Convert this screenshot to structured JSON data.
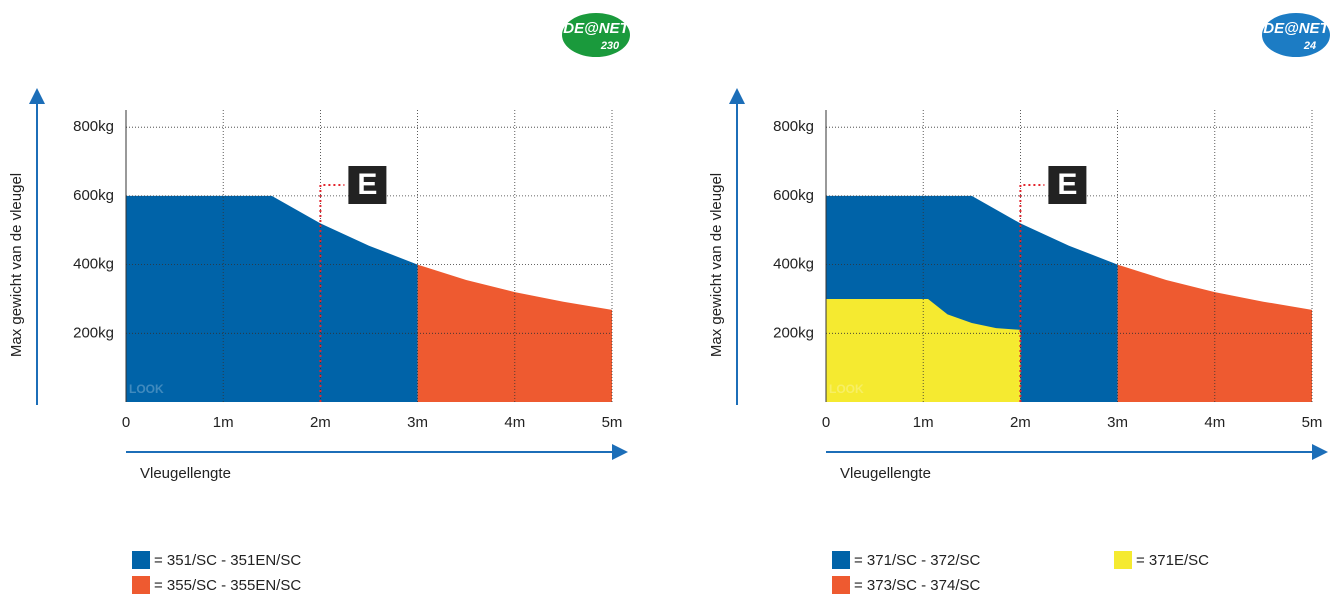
{
  "chart_data": [
    {
      "type": "area",
      "logo": {
        "brand": "DE@NET",
        "model": "230",
        "color": "#1a9a3c"
      },
      "y_label": "Max gewicht van de vleugel",
      "x_label": "Vleugellengte",
      "watermark": "LOOK",
      "annotation": {
        "label": "E",
        "x": 2
      },
      "xlim": [
        0,
        5
      ],
      "xticks": [
        0,
        {
          "value": 1,
          "label": "1m"
        },
        {
          "value": 2,
          "label": "2m"
        },
        {
          "value": 3,
          "label": "3m"
        },
        {
          "value": 4,
          "label": "4m"
        },
        {
          "value": 5,
          "label": "5m"
        }
      ],
      "ylim": [
        0,
        850
      ],
      "yticks": [
        {
          "value": 200,
          "label": "200kg"
        },
        {
          "value": 400,
          "label": "400kg"
        },
        {
          "value": 600,
          "label": "600kg"
        },
        {
          "value": 800,
          "label": "800kg"
        }
      ],
      "grid": true,
      "series": [
        {
          "name": "= 351/SC - 351EN/SC",
          "color": "#0063a8",
          "x": [
            0,
            1.5,
            2,
            2.5,
            3
          ],
          "values": [
            600,
            600,
            520,
            455,
            400
          ]
        },
        {
          "name": "= 355/SC - 355EN/SC",
          "color": "#ee5a30",
          "x": [
            3,
            3.5,
            4,
            4.5,
            5
          ],
          "values": [
            400,
            355,
            320,
            292,
            268
          ]
        }
      ]
    },
    {
      "type": "area",
      "logo": {
        "brand": "DE@NET",
        "model": "24",
        "color": "#1c7cc4"
      },
      "y_label": "Max gewicht van de vleugel",
      "x_label": "Vleugellengte",
      "watermark": "LOOK",
      "annotation": {
        "label": "E",
        "x": 2
      },
      "xlim": [
        0,
        5
      ],
      "xticks": [
        0,
        {
          "value": 1,
          "label": "1m"
        },
        {
          "value": 2,
          "label": "2m"
        },
        {
          "value": 3,
          "label": "3m"
        },
        {
          "value": 4,
          "label": "4m"
        },
        {
          "value": 5,
          "label": "5m"
        }
      ],
      "ylim": [
        0,
        850
      ],
      "yticks": [
        {
          "value": 200,
          "label": "200kg"
        },
        {
          "value": 400,
          "label": "400kg"
        },
        {
          "value": 600,
          "label": "600kg"
        },
        {
          "value": 800,
          "label": "800kg"
        }
      ],
      "grid": true,
      "series": [
        {
          "name": "= 371/SC - 372/SC",
          "color": "#0063a8",
          "x": [
            0,
            1.5,
            2,
            2.5,
            3
          ],
          "values": [
            600,
            600,
            520,
            455,
            400
          ]
        },
        {
          "name": "= 373/SC - 374/SC",
          "color": "#ee5a30",
          "x": [
            3,
            3.5,
            4,
            4.5,
            5
          ],
          "values": [
            400,
            355,
            320,
            292,
            268
          ]
        },
        {
          "name": "= 371E/SC",
          "color": "#f5ea30",
          "x": [
            0,
            1.05,
            1.25,
            1.5,
            1.75,
            2
          ],
          "values": [
            300,
            300,
            255,
            230,
            215,
            210
          ]
        }
      ]
    }
  ]
}
